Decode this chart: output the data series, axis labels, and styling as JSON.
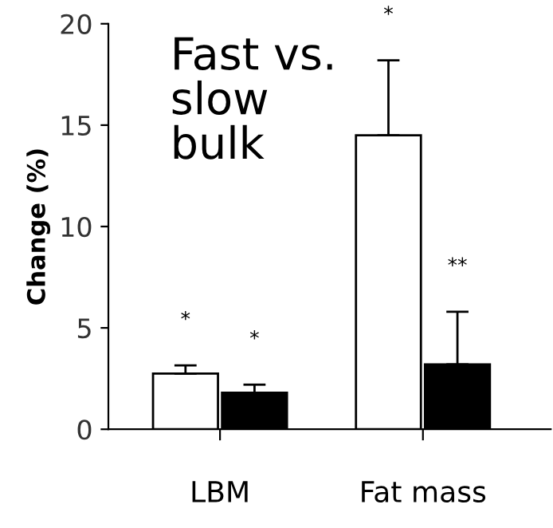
{
  "chart_data": {
    "type": "bar",
    "title": "Fast vs.\nslow\nbulk",
    "ylabel": "Change (%)",
    "categories": [
      "LBM",
      "Fat mass"
    ],
    "series": [
      {
        "color": "#ffffff",
        "values": [
          2.75,
          14.5
        ],
        "errors": [
          [
            2.75,
            3.15
          ],
          [
            14.5,
            18.2
          ]
        ]
      },
      {
        "color": "#000000",
        "values": [
          1.8,
          3.2
        ],
        "errors": [
          [
            1.8,
            2.2
          ],
          [
            3.2,
            5.8
          ]
        ]
      }
    ],
    "annotations": [
      "*",
      "*",
      "*",
      "**"
    ],
    "ylim": [
      0,
      20
    ],
    "yticks": [
      0,
      5,
      10,
      15,
      20
    ],
    "grid": false,
    "legend": false
  }
}
